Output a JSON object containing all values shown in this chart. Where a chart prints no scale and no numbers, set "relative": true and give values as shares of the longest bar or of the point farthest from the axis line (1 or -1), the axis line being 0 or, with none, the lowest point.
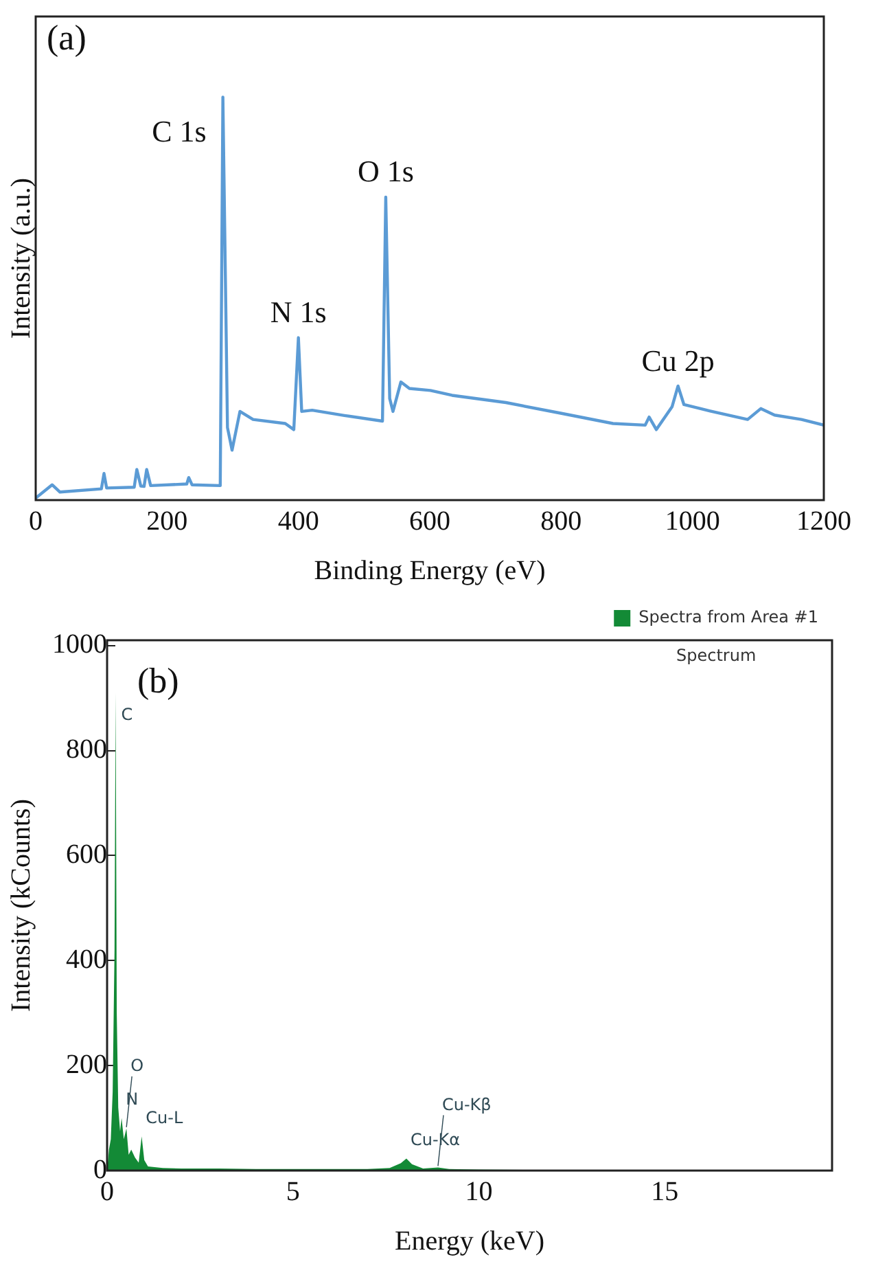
{
  "chart_data": [
    {
      "type": "line",
      "title": "(a)",
      "xlabel": "Binding Energy (eV)",
      "ylabel": "Intensity (a.u.)",
      "relative": true,
      "xlim": [
        0,
        1200
      ],
      "xticks": [
        0,
        200,
        400,
        600,
        800,
        1000,
        1200
      ],
      "tick_labels": "x",
      "grid": false,
      "legend": false,
      "marker": "none",
      "series": [
        {
          "color": "#5b9bd5",
          "x": [
            0,
            25,
            37,
            100,
            104,
            108,
            150,
            154,
            160,
            165,
            169,
            175,
            230,
            233,
            238,
            281,
            285,
            292,
            299,
            311,
            331,
            380,
            393,
            400,
            405,
            421,
            470,
            528,
            533,
            539,
            544,
            556,
            569,
            601,
            634,
            716,
            798,
            879,
            928,
            934,
            945,
            969,
            978,
            987,
            1027,
            1084,
            1104,
            1125,
            1166,
            1200
          ],
          "values": [
            0.005,
            0.038,
            0.02,
            0.028,
            0.066,
            0.03,
            0.032,
            0.076,
            0.035,
            0.034,
            0.076,
            0.036,
            0.04,
            0.056,
            0.038,
            0.036,
            1.0,
            0.18,
            0.124,
            0.22,
            0.2,
            0.19,
            0.175,
            0.403,
            0.22,
            0.223,
            0.21,
            0.196,
            0.752,
            0.252,
            0.22,
            0.293,
            0.277,
            0.272,
            0.26,
            0.242,
            0.216,
            0.19,
            0.186,
            0.206,
            0.175,
            0.232,
            0.283,
            0.237,
            0.221,
            0.2,
            0.227,
            0.211,
            0.2,
            0.186
          ]
        }
      ],
      "annotations": [
        {
          "text": "C 1s",
          "x": 285,
          "y": 1.0
        },
        {
          "text": "N 1s",
          "x": 400,
          "y": 0.403
        },
        {
          "text": "O 1s",
          "x": 533,
          "y": 0.752
        },
        {
          "text": "Cu 2p",
          "x": 978,
          "y": 0.283
        }
      ]
    },
    {
      "type": "area",
      "title": "(b)",
      "xlabel": "Energy (keV)",
      "ylabel": "Intensity (kCounts)",
      "xlim": [
        0,
        19.5
      ],
      "xticks": [
        0,
        5,
        10,
        15
      ],
      "ylim": [
        0,
        1010
      ],
      "yticks": [
        0,
        200,
        400,
        600,
        800,
        1000
      ],
      "grid": false,
      "legend": "top right",
      "marker": "none",
      "series": [
        {
          "name": "Spectra from Area #1",
          "color": "#138a36",
          "x": [
            0,
            0.05,
            0.1,
            0.15,
            0.2,
            0.23,
            0.26,
            0.3,
            0.35,
            0.39,
            0.45,
            0.52,
            0.58,
            0.65,
            0.75,
            0.85,
            0.93,
            1.0,
            1.1,
            1.5,
            2,
            3,
            4,
            5,
            6,
            7,
            7.6,
            7.9,
            8.05,
            8.2,
            8.5,
            8.9,
            9.2,
            10,
            12,
            15,
            19.5
          ],
          "values": [
            0,
            40,
            60,
            150,
            420,
            910,
            300,
            120,
            75,
            100,
            60,
            80,
            30,
            40,
            25,
            15,
            65,
            20,
            8,
            5,
            4,
            4,
            3,
            3,
            3,
            3,
            5,
            14,
            23,
            12,
            4,
            6,
            3,
            2,
            1,
            1,
            0
          ]
        }
      ],
      "annotations": [
        {
          "text": "C",
          "x": 0.23,
          "y": 910
        },
        {
          "text": "N",
          "x": 0.39,
          "y": 100
        },
        {
          "text": "O",
          "x": 0.52,
          "y": 80
        },
        {
          "text": "Cu-L",
          "x": 0.93,
          "y": 65
        },
        {
          "text": "Cu-Kα",
          "x": 8.05,
          "y": 23
        },
        {
          "text": "Cu-Kβ",
          "x": 8.9,
          "y": 6
        },
        "Spectrum"
      ]
    }
  ]
}
